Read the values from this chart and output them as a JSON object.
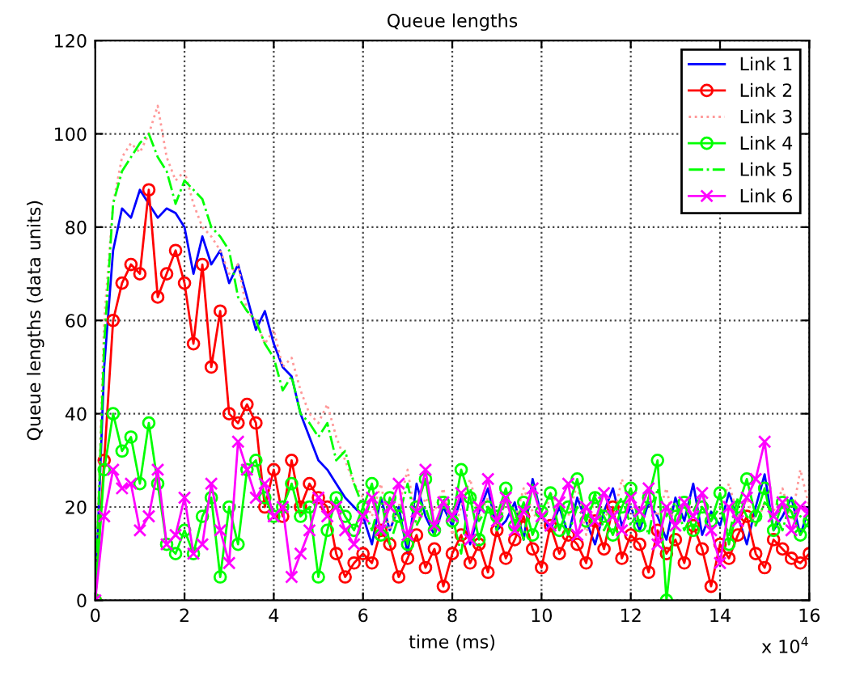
{
  "chart_data": {
    "type": "line",
    "title": "Queue lengths",
    "xlabel": "time (ms)",
    "ylabel": "Queue lengths (data units)",
    "annotations": [
      "x 10$^{4}$"
    ],
    "x": [
      0,
      0.2,
      0.4,
      0.6,
      0.8,
      1.0,
      1.2,
      1.4,
      1.6,
      1.8,
      2.0,
      2.2,
      2.4,
      2.6,
      2.8,
      3.0,
      3.2,
      3.4,
      3.6,
      3.8,
      4.0,
      4.2,
      4.4,
      4.6,
      4.8,
      5.0,
      5.2,
      5.4,
      5.6,
      5.8,
      6.0,
      6.2,
      6.4,
      6.6,
      6.8,
      7.0,
      7.2,
      7.4,
      7.6,
      7.8,
      8.0,
      8.2,
      8.4,
      8.6,
      8.8,
      9.0,
      9.2,
      9.4,
      9.6,
      9.8,
      10.0,
      10.2,
      10.4,
      10.6,
      10.8,
      11.0,
      11.2,
      11.4,
      11.6,
      11.8,
      12.0,
      12.2,
      12.4,
      12.6,
      12.8,
      13.0,
      13.2,
      13.4,
      13.6,
      13.8,
      14.0,
      14.2,
      14.4,
      14.6,
      14.8,
      15.0,
      15.2,
      15.4,
      15.6,
      15.8,
      16.0
    ],
    "xlim": [
      0,
      16
    ],
    "xticks": [
      0,
      2,
      4,
      6,
      8,
      10,
      12,
      14,
      16
    ],
    "ylim": [
      0,
      120
    ],
    "yticks": [
      0,
      20,
      40,
      60,
      80,
      100,
      120
    ],
    "grid": true,
    "legend": "top right",
    "series": [
      {
        "name": "Link 1",
        "color": "#0000ff",
        "line_style": "solid",
        "marker": "none",
        "values": [
          0,
          50,
          75,
          84,
          82,
          88,
          85,
          82,
          84,
          83,
          80,
          70,
          78,
          72,
          75,
          68,
          72,
          65,
          58,
          62,
          55,
          50,
          48,
          40,
          35,
          30,
          28,
          25,
          22,
          20,
          18,
          12,
          22,
          15,
          20,
          10,
          25,
          18,
          14,
          20,
          16,
          22,
          12,
          19,
          24,
          15,
          17,
          21,
          13,
          26,
          18,
          15,
          20,
          14,
          22,
          17,
          12,
          19,
          24,
          16,
          20,
          15,
          21,
          18,
          13,
          22,
          17,
          25,
          14,
          19,
          16,
          23,
          18,
          12,
          20,
          27,
          15,
          18,
          22,
          14,
          20
        ]
      },
      {
        "name": "Link 2",
        "color": "#ff0000",
        "line_style": "solid",
        "marker": "circle",
        "values": [
          0,
          30,
          60,
          68,
          72,
          70,
          88,
          65,
          70,
          75,
          68,
          55,
          72,
          50,
          62,
          40,
          38,
          42,
          38,
          20,
          28,
          18,
          30,
          20,
          25,
          22,
          20,
          10,
          5,
          8,
          10,
          8,
          15,
          12,
          5,
          9,
          14,
          7,
          11,
          3,
          10,
          14,
          8,
          12,
          6,
          15,
          9,
          13,
          18,
          11,
          7,
          16,
          10,
          14,
          12,
          8,
          17,
          11,
          20,
          9,
          14,
          12,
          6,
          15,
          10,
          13,
          8,
          16,
          11,
          3,
          12,
          9,
          14,
          18,
          10,
          7,
          13,
          11,
          9,
          8,
          10
        ]
      },
      {
        "name": "Link 3",
        "color": "#ff9999",
        "line_style": "dotted",
        "marker": "none",
        "values": [
          0,
          60,
          85,
          95,
          98,
          96,
          100,
          106,
          95,
          90,
          92,
          85,
          80,
          78,
          75,
          70,
          72,
          62,
          60,
          55,
          58,
          50,
          52,
          45,
          40,
          38,
          42,
          35,
          30,
          25,
          22,
          18,
          25,
          15,
          20,
          28,
          16,
          22,
          19,
          24,
          14,
          20,
          26,
          18,
          22,
          15,
          21,
          17,
          24,
          19,
          16,
          23,
          20,
          18,
          25,
          14,
          22,
          19,
          17,
          26,
          20,
          16,
          22,
          18,
          24,
          15,
          21,
          19,
          23,
          17,
          20,
          25,
          18,
          22,
          16,
          21,
          19,
          24,
          17,
          28,
          20
        ]
      },
      {
        "name": "Link 4",
        "color": "#00ff00",
        "line_style": "solid",
        "marker": "circle",
        "values": [
          0,
          28,
          40,
          32,
          35,
          25,
          38,
          25,
          12,
          10,
          15,
          10,
          18,
          22,
          5,
          20,
          12,
          28,
          30,
          22,
          18,
          20,
          25,
          18,
          20,
          5,
          15,
          22,
          18,
          15,
          20,
          25,
          14,
          22,
          18,
          12,
          20,
          26,
          15,
          21,
          17,
          28,
          22,
          13,
          20,
          18,
          24,
          16,
          21,
          14,
          19,
          23,
          15,
          20,
          26,
          17,
          22,
          18,
          14,
          20,
          24,
          16,
          22,
          30,
          0,
          18,
          21,
          15,
          20,
          17,
          23,
          12,
          20,
          26,
          18,
          24,
          15,
          21,
          19,
          14,
          17
        ]
      },
      {
        "name": "Link 5",
        "color": "#00ff00",
        "line_style": "dashed",
        "marker": "none",
        "values": [
          0,
          55,
          85,
          92,
          95,
          98,
          100,
          95,
          92,
          85,
          90,
          88,
          86,
          80,
          78,
          75,
          65,
          62,
          60,
          55,
          52,
          45,
          48,
          40,
          38,
          35,
          38,
          30,
          32,
          25,
          20,
          15,
          22,
          12,
          18,
          25,
          16,
          20,
          14,
          22,
          18,
          10,
          24,
          17,
          20,
          15,
          22,
          19,
          13,
          25,
          18,
          16,
          21,
          14,
          20,
          17,
          23,
          15,
          19,
          22,
          16,
          20,
          14,
          24,
          18,
          21,
          15,
          19,
          23,
          17,
          20,
          14,
          22,
          18,
          16,
          21,
          19,
          15,
          22,
          18,
          17
        ]
      },
      {
        "name": "Link 6",
        "color": "#ff00ff",
        "line_style": "solid",
        "marker": "cross",
        "values": [
          0,
          18,
          28,
          24,
          25,
          15,
          18,
          28,
          12,
          14,
          22,
          10,
          12,
          25,
          15,
          8,
          34,
          28,
          22,
          25,
          18,
          20,
          5,
          10,
          15,
          22,
          18,
          20,
          15,
          12,
          18,
          22,
          15,
          20,
          25,
          14,
          19,
          28,
          16,
          21,
          18,
          23,
          13,
          20,
          26,
          17,
          22,
          15,
          19,
          24,
          18,
          16,
          21,
          25,
          14,
          20,
          17,
          23,
          18,
          15,
          22,
          19,
          24,
          12,
          20,
          16,
          21,
          18,
          23,
          15,
          8,
          20,
          17,
          22,
          26,
          34,
          18,
          21,
          15,
          20,
          19
        ]
      }
    ]
  }
}
